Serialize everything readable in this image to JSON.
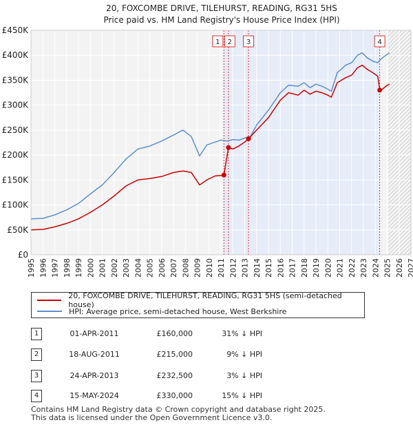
{
  "chart_data": {
    "type": "line",
    "title": "20, FOXCOMBE DRIVE, TILEHURST, READING, RG31 5HS",
    "subtitle": "Price paid vs. HM Land Registry's House Price Index (HPI)",
    "xlabel": "",
    "ylabel": "",
    "xlim": [
      1995,
      2027
    ],
    "ylim": [
      0,
      450000
    ],
    "y_ticks": [
      0,
      50000,
      100000,
      150000,
      200000,
      250000,
      300000,
      350000,
      400000,
      450000
    ],
    "y_tick_labels": [
      "£0",
      "£50K",
      "£100K",
      "£150K",
      "£200K",
      "£250K",
      "£300K",
      "£350K",
      "£400K",
      "£450K"
    ],
    "x_ticks": [
      1995,
      1996,
      1997,
      1998,
      1999,
      2000,
      2001,
      2002,
      2003,
      2004,
      2005,
      2006,
      2007,
      2008,
      2009,
      2010,
      2011,
      2012,
      2013,
      2014,
      2015,
      2016,
      2017,
      2018,
      2019,
      2020,
      2021,
      2022,
      2023,
      2024,
      2025,
      2026,
      2027
    ],
    "x_tick_labels": [
      "1995",
      "1996",
      "1997",
      "1998",
      "1999",
      "2000",
      "2001",
      "2002",
      "2003",
      "2004",
      "2005",
      "2006",
      "2007",
      "2008",
      "2009",
      "2010",
      "2011",
      "2012",
      "2013",
      "2014",
      "2015",
      "2016",
      "2017",
      "2018",
      "2019",
      "2020",
      "2021",
      "2022",
      "2023",
      "2024",
      "2025",
      "2026",
      "2027"
    ],
    "grid": true,
    "forecast_start": 2025.1,
    "shaded_span": [
      2011.25,
      2024.37
    ],
    "series": [
      {
        "name": "20, FOXCOMBE DRIVE, TILEHURST, READING, RG31 5HS (semi-detached house)",
        "color": "#cc0000",
        "x": [
          1995.0,
          1996.0,
          1997.0,
          1998.0,
          1999.0,
          2000.0,
          2001.0,
          2002.0,
          2003.0,
          2004.0,
          2005.0,
          2006.0,
          2007.0,
          2007.8,
          2008.5,
          2009.2,
          2009.8,
          2010.5,
          2011.0,
          2011.25,
          2011.63,
          2012.0,
          2012.5,
          2013.0,
          2013.32,
          2014.0,
          2015.0,
          2016.0,
          2016.7,
          2017.5,
          2018.0,
          2018.5,
          2019.0,
          2019.5,
          2020.0,
          2020.3,
          2020.8,
          2021.5,
          2022.0,
          2022.5,
          2022.9,
          2023.3,
          2023.8,
          2024.2,
          2024.35,
          2024.5,
          2025.0,
          2025.2
        ],
        "values": [
          50000,
          51000,
          56000,
          63000,
          72000,
          85000,
          100000,
          118000,
          138000,
          150000,
          153000,
          157000,
          165000,
          168000,
          165000,
          140000,
          150000,
          158000,
          159000,
          160000,
          215000,
          212000,
          218000,
          226000,
          232500,
          250000,
          275000,
          310000,
          325000,
          320000,
          330000,
          322000,
          328000,
          325000,
          320000,
          316000,
          345000,
          355000,
          360000,
          375000,
          380000,
          372000,
          365000,
          358000,
          335000,
          330000,
          340000,
          342000
        ]
      },
      {
        "name": "HPI: Average price, semi-detached house, West Berkshire",
        "color": "#5b8fd0",
        "x": [
          1995.0,
          1996.0,
          1997.0,
          1998.0,
          1999.0,
          2000.0,
          2001.0,
          2002.0,
          2003.0,
          2004.0,
          2005.0,
          2006.0,
          2007.0,
          2007.8,
          2008.5,
          2009.2,
          2009.8,
          2010.5,
          2011.0,
          2011.5,
          2012.0,
          2012.5,
          2013.0,
          2013.5,
          2014.0,
          2015.0,
          2016.0,
          2016.7,
          2017.5,
          2018.0,
          2018.5,
          2019.0,
          2019.5,
          2020.0,
          2020.3,
          2020.8,
          2021.5,
          2022.0,
          2022.5,
          2022.9,
          2023.3,
          2023.8,
          2024.2,
          2024.5,
          2025.0,
          2025.2
        ],
        "values": [
          72000,
          73000,
          80000,
          90000,
          103000,
          122000,
          140000,
          165000,
          192000,
          212000,
          218000,
          228000,
          240000,
          250000,
          237000,
          198000,
          220000,
          226000,
          230000,
          228000,
          231000,
          230000,
          234000,
          238000,
          260000,
          290000,
          325000,
          340000,
          338000,
          345000,
          335000,
          342000,
          338000,
          332000,
          328000,
          365000,
          380000,
          385000,
          400000,
          405000,
          395000,
          388000,
          385000,
          393000,
          402000,
          405000
        ]
      }
    ],
    "transactions": [
      {
        "num": "1",
        "x": 2011.25,
        "value": 160000,
        "date": "01-APR-2011",
        "price": "£160,000",
        "hpi": "31% ↓ HPI"
      },
      {
        "num": "2",
        "x": 2011.63,
        "value": 215000,
        "date": "18-AUG-2011",
        "price": "£215,000",
        "hpi": "9% ↓ HPI"
      },
      {
        "num": "3",
        "x": 2013.32,
        "value": 232500,
        "date": "24-APR-2013",
        "price": "£232,500",
        "hpi": "3% ↓ HPI"
      },
      {
        "num": "4",
        "x": 2024.37,
        "value": 330000,
        "date": "15-MAY-2024",
        "price": "£330,000",
        "hpi": "15% ↓ HPI"
      }
    ],
    "legend_position": "bottom"
  },
  "legend": {
    "property_label": "20, FOXCOMBE DRIVE, TILEHURST, READING, RG31 5HS (semi-detached house)",
    "hpi_label": "HPI: Average price, semi-detached house, West Berkshire"
  },
  "footer": {
    "line1": "Contains HM Land Registry data © Crown copyright and database right 2025.",
    "line2": "This data is licensed under the Open Government Licence v3.0."
  }
}
